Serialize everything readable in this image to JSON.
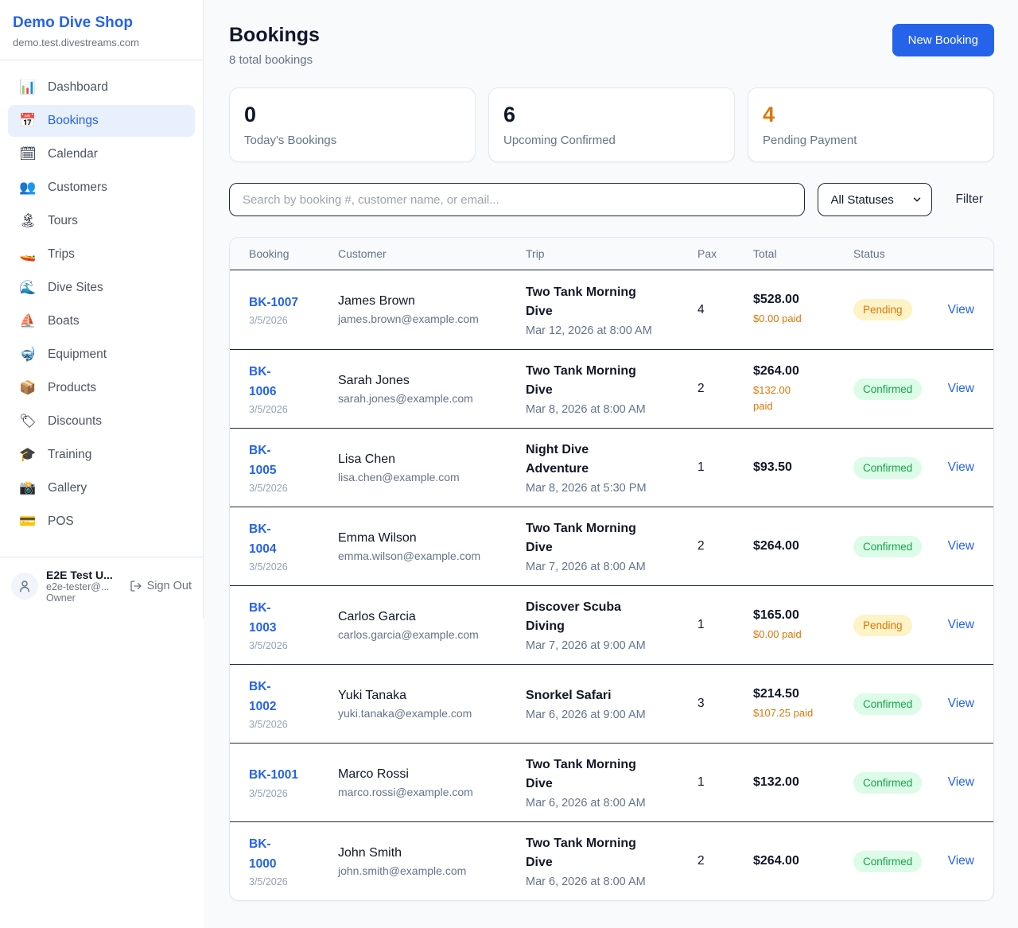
{
  "sidebar": {
    "shop_name": "Demo Dive Shop",
    "shop_domain": "demo.test.divestreams.com",
    "items": [
      {
        "icon": "📊",
        "name": "dashboard",
        "label": "Dashboard",
        "active": false
      },
      {
        "icon": "📅",
        "name": "bookings",
        "label": "Bookings",
        "active": true
      },
      {
        "icon": "🗓",
        "name": "calendar",
        "label": "Calendar",
        "active": false
      },
      {
        "icon": "👥",
        "name": "customers",
        "label": "Customers",
        "active": false
      },
      {
        "icon": "🏝",
        "name": "tours",
        "label": "Tours",
        "active": false
      },
      {
        "icon": "🚤",
        "name": "trips",
        "label": "Trips",
        "active": false
      },
      {
        "icon": "🌊",
        "name": "dive-sites",
        "label": "Dive Sites",
        "active": false
      },
      {
        "icon": "⛵",
        "name": "boats",
        "label": "Boats",
        "active": false
      },
      {
        "icon": "🤿",
        "name": "equipment",
        "label": "Equipment",
        "active": false
      },
      {
        "icon": "📦",
        "name": "products",
        "label": "Products",
        "active": false
      },
      {
        "icon": "🏷",
        "name": "discounts",
        "label": "Discounts",
        "active": false
      },
      {
        "icon": "🎓",
        "name": "training",
        "label": "Training",
        "active": false
      },
      {
        "icon": "📸",
        "name": "gallery",
        "label": "Gallery",
        "active": false
      },
      {
        "icon": "💳",
        "name": "pos",
        "label": "POS",
        "active": false
      }
    ],
    "user": {
      "name": "E2E Test U...",
      "email": "e2e-tester@...",
      "role": "Owner",
      "sign_out_label": "Sign Out"
    }
  },
  "header": {
    "title": "Bookings",
    "subtitle": "8 total bookings",
    "new_booking_label": "New Booking"
  },
  "stats": [
    {
      "value": "0",
      "label": "Today's Bookings",
      "accent": false
    },
    {
      "value": "6",
      "label": "Upcoming Confirmed",
      "accent": false
    },
    {
      "value": "4",
      "label": "Pending Payment",
      "accent": true
    }
  ],
  "filters": {
    "search_placeholder": "Search by booking #, customer name, or email...",
    "status_selected": "All Statuses",
    "filter_label": "Filter"
  },
  "table": {
    "columns": [
      "Booking",
      "Customer",
      "Trip",
      "Pax",
      "Total",
      "Status",
      ""
    ],
    "rows": [
      {
        "booking_id": "BK-1007",
        "date": "3/5/2026",
        "customer_name": "James Brown",
        "customer_email": "james.brown@example.com",
        "trip": "Two Tank Morning Dive",
        "trip_datetime": "Mar 12, 2026 at 8:00 AM",
        "pax": "4",
        "total": "$528.00",
        "paid": "$0.00 paid",
        "status": "Pending",
        "action": "View"
      },
      {
        "booking_id": "BK-\n1006",
        "date": "3/5/2026",
        "customer_name": "Sarah Jones",
        "customer_email": "sarah.jones@example.com",
        "trip": "Two Tank Morning Dive",
        "trip_datetime": "Mar 8, 2026 at 8:00 AM",
        "pax": "2",
        "total": "$264.00",
        "paid": "$132.00\npaid",
        "status": "Confirmed",
        "action": "View"
      },
      {
        "booking_id": "BK-\n1005",
        "date": "3/5/2026",
        "customer_name": "Lisa Chen",
        "customer_email": "lisa.chen@example.com",
        "trip": "Night Dive Adventure",
        "trip_datetime": "Mar 8, 2026 at 5:30 PM",
        "pax": "1",
        "total": "$93.50",
        "paid": "",
        "status": "Confirmed",
        "action": "View"
      },
      {
        "booking_id": "BK-\n1004",
        "date": "3/5/2026",
        "customer_name": "Emma Wilson",
        "customer_email": "emma.wilson@example.com",
        "trip": "Two Tank Morning Dive",
        "trip_datetime": "Mar 7, 2026 at 8:00 AM",
        "pax": "2",
        "total": "$264.00",
        "paid": "",
        "status": "Confirmed",
        "action": "View"
      },
      {
        "booking_id": "BK-\n1003",
        "date": "3/5/2026",
        "customer_name": "Carlos Garcia",
        "customer_email": "carlos.garcia@example.com",
        "trip": "Discover Scuba Diving",
        "trip_datetime": "Mar 7, 2026 at 9:00 AM",
        "pax": "1",
        "total": "$165.00",
        "paid": "$0.00 paid",
        "status": "Pending",
        "action": "View"
      },
      {
        "booking_id": "BK-\n1002",
        "date": "3/5/2026",
        "customer_name": "Yuki Tanaka",
        "customer_email": "yuki.tanaka@example.com",
        "trip": "Snorkel Safari",
        "trip_datetime": "Mar 6, 2026 at 9:00 AM",
        "pax": "3",
        "total": "$214.50",
        "paid": "$107.25 paid",
        "status": "Confirmed",
        "action": "View"
      },
      {
        "booking_id": "BK-1001",
        "date": "3/5/2026",
        "customer_name": "Marco Rossi",
        "customer_email": "marco.rossi@example.com",
        "trip": "Two Tank Morning Dive",
        "trip_datetime": "Mar 6, 2026 at 8:00 AM",
        "pax": "1",
        "total": "$132.00",
        "paid": "",
        "status": "Confirmed",
        "action": "View"
      },
      {
        "booking_id": "BK-\n1000",
        "date": "3/5/2026",
        "customer_name": "John Smith",
        "customer_email": "john.smith@example.com",
        "trip": "Two Tank Morning Dive",
        "trip_datetime": "Mar 6, 2026 at 8:00 AM",
        "pax": "2",
        "total": "$264.00",
        "paid": "",
        "status": "Confirmed",
        "action": "View"
      }
    ]
  },
  "colors": {
    "accent_blue": "#2563eb",
    "pending_text": "#d97706",
    "pending_bg": "#fef3c7",
    "confirmed_text": "#16a34a",
    "confirmed_bg": "#dcfce7",
    "page_bg": "#f8fafc"
  }
}
